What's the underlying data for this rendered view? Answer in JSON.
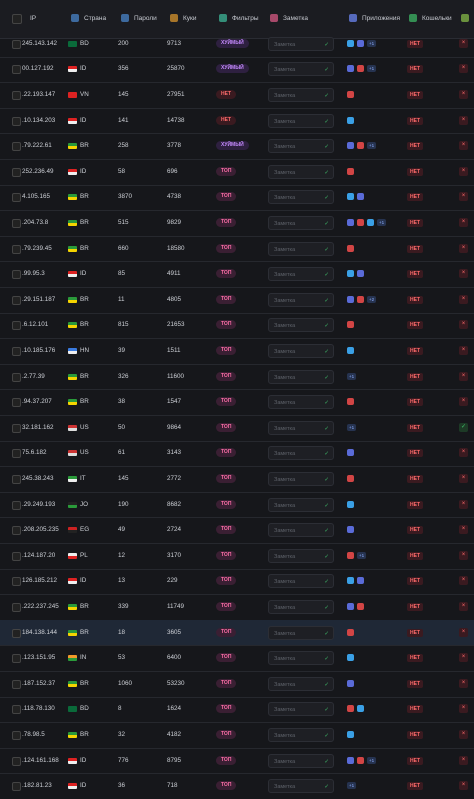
{
  "table": {
    "header": [
      "IP",
      "Страна",
      "Пароли",
      "Куки",
      "Фильтры",
      "Заметка",
      "Приложения",
      "Кошельки"
    ],
    "note_placeholder": "Заметка",
    "rows": [
      {
        "ip": "245.143.142",
        "country": "BD",
        "passwords": "200",
        "cookies": "9713",
        "filter": "ХУЙМЫЙ",
        "apps_more": "+1",
        "wallets": "НЕТ"
      },
      {
        "ip": "00.127.192",
        "country": "ID",
        "passwords": "356",
        "cookies": "25870",
        "filter": "ХУЙМЫЙ",
        "apps_more": "+1",
        "wallets": "НЕТ"
      },
      {
        "ip": ".22.193.147",
        "country": "VN",
        "passwords": "145",
        "cookies": "27951",
        "filter": "НЕТ",
        "wallets": "НЕТ"
      },
      {
        "ip": ".10.134.203",
        "country": "ID",
        "passwords": "141",
        "cookies": "14738",
        "filter": "НЕТ",
        "wallets": "НЕТ"
      },
      {
        "ip": ".79.222.61",
        "country": "BR",
        "passwords": "258",
        "cookies": "3778",
        "filter": "ХУЙМЫЙ",
        "apps_more": "+1",
        "wallets": "НЕТ"
      },
      {
        "ip": "252.236.49",
        "country": "ID",
        "passwords": "58",
        "cookies": "696",
        "filter": "ТОП",
        "wallets": "НЕТ"
      },
      {
        "ip": "4.105.165",
        "country": "BR",
        "passwords": "3870",
        "cookies": "4738",
        "filter": "ТОП",
        "wallets": "НЕТ"
      },
      {
        "ip": ".204.73.8",
        "country": "BR",
        "passwords": "515",
        "cookies": "9829",
        "filter": "ТОП",
        "apps_more": "+1",
        "wallets": "НЕТ"
      },
      {
        "ip": ".79.239.45",
        "country": "BR",
        "passwords": "660",
        "cookies": "18580",
        "filter": "ТОП",
        "wallets": "НЕТ"
      },
      {
        "ip": ".99.95.3",
        "country": "ID",
        "passwords": "85",
        "cookies": "4911",
        "filter": "ТОП",
        "wallets": "НЕТ"
      },
      {
        "ip": ".29.151.187",
        "country": "BR",
        "passwords": "11",
        "cookies": "4805",
        "filter": "ТОП",
        "apps_more": "+2",
        "wallets": "НЕТ"
      },
      {
        "ip": ".6.12.101",
        "country": "BR",
        "passwords": "815",
        "cookies": "21653",
        "filter": "ТОП",
        "wallets": "НЕТ"
      },
      {
        "ip": ".10.185.176",
        "country": "HN",
        "passwords": "39",
        "cookies": "1511",
        "filter": "ТОП",
        "wallets": "НЕТ"
      },
      {
        "ip": ".2.77.39",
        "country": "BR",
        "passwords": "326",
        "cookies": "11600",
        "filter": "ТОП",
        "apps_more": "+1",
        "wallets": "НЕТ"
      },
      {
        "ip": ".94.37.207",
        "country": "BR",
        "passwords": "38",
        "cookies": "1547",
        "filter": "ТОП",
        "wallets": "НЕТ"
      },
      {
        "ip": "32.181.162",
        "country": "US",
        "passwords": "50",
        "cookies": "9864",
        "filter": "ТОП",
        "apps_more": "+1",
        "wallets": "НЕТ"
      },
      {
        "ip": "75.6.182",
        "country": "US",
        "passwords": "61",
        "cookies": "3143",
        "filter": "ТОП",
        "wallets": "НЕТ"
      },
      {
        "ip": "245.38.243",
        "country": "IT",
        "passwords": "145",
        "cookies": "2772",
        "filter": "ТОП",
        "wallets": "НЕТ"
      },
      {
        "ip": ".29.249.193",
        "country": "JO",
        "passwords": "190",
        "cookies": "8682",
        "filter": "ТОП",
        "wallets": "НЕТ"
      },
      {
        "ip": ".208.205.235",
        "country": "EG",
        "passwords": "49",
        "cookies": "2724",
        "filter": "ТОП",
        "wallets": "НЕТ"
      },
      {
        "ip": ".124.187.20",
        "country": "PL",
        "passwords": "12",
        "cookies": "3170",
        "filter": "ТОП",
        "apps_more": "+1",
        "wallets": "НЕТ"
      },
      {
        "ip": "126.185.212",
        "country": "ID",
        "passwords": "13",
        "cookies": "229",
        "filter": "ТОП",
        "wallets": "НЕТ"
      },
      {
        "ip": ".222.237.245",
        "country": "BR",
        "passwords": "339",
        "cookies": "11749",
        "filter": "ТОП",
        "wallets": "НЕТ"
      },
      {
        "ip": "184.138.144",
        "country": "BR",
        "passwords": "18",
        "cookies": "3605",
        "filter": "ТОП",
        "wallets": "НЕТ"
      },
      {
        "ip": ".123.151.95",
        "country": "IN",
        "passwords": "53",
        "cookies": "6400",
        "filter": "ТОП",
        "wallets": "НЕТ"
      },
      {
        "ip": ".187.152.37",
        "country": "BR",
        "passwords": "1060",
        "cookies": "53230",
        "filter": "ТОП",
        "wallets": "НЕТ"
      },
      {
        "ip": ".118.78.130",
        "country": "BD",
        "passwords": "8",
        "cookies": "1624",
        "filter": "ТОП",
        "wallets": "НЕТ"
      },
      {
        "ip": ".78.98.5",
        "country": "BR",
        "passwords": "32",
        "cookies": "4182",
        "filter": "ТОП",
        "wallets": "НЕТ"
      },
      {
        "ip": ".124.161.168",
        "country": "ID",
        "passwords": "776",
        "cookies": "8795",
        "filter": "ТОП",
        "apps_more": "+1",
        "wallets": "НЕТ"
      },
      {
        "ip": ".182.81.23",
        "country": "ID",
        "passwords": "36",
        "cookies": "718",
        "filter": "ТОП",
        "apps_more": "+1",
        "wallets": "НЕТ"
      }
    ]
  }
}
